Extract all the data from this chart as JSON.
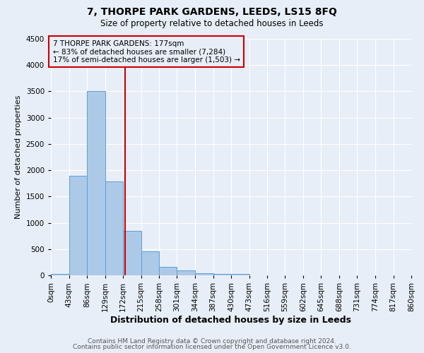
{
  "title": "7, THORPE PARK GARDENS, LEEDS, LS15 8FQ",
  "subtitle": "Size of property relative to detached houses in Leeds",
  "xlabel": "Distribution of detached houses by size in Leeds",
  "ylabel": "Number of detached properties",
  "footer_line1": "Contains HM Land Registry data © Crown copyright and database right 2024.",
  "footer_line2": "Contains public sector information licensed under the Open Government Licence v3.0.",
  "annotation_line1": "7 THORPE PARK GARDENS: 177sqm",
  "annotation_line2": "← 83% of detached houses are smaller (7,284)",
  "annotation_line3": "17% of semi-detached houses are larger (1,503) →",
  "bin_labels": [
    "0sqm",
    "43sqm",
    "86sqm",
    "129sqm",
    "172sqm",
    "215sqm",
    "258sqm",
    "301sqm",
    "344sqm",
    "387sqm",
    "430sqm",
    "473sqm",
    "516sqm",
    "559sqm",
    "602sqm",
    "645sqm",
    "688sqm",
    "731sqm",
    "774sqm",
    "817sqm",
    "860sqm"
  ],
  "bar_heights": [
    30,
    1900,
    3500,
    1780,
    840,
    455,
    160,
    90,
    45,
    25,
    25,
    0,
    0,
    0,
    0,
    0,
    0,
    0,
    0,
    0
  ],
  "bar_color": "#adc9e8",
  "bar_edge_color": "#5a9fd4",
  "vline_x": 177,
  "vline_color": "#cc0000",
  "annotation_box_color": "#cc0000",
  "background_color": "#e8eef8",
  "grid_color": "#ffffff",
  "ylim": [
    0,
    4500
  ],
  "xlim_start": 0,
  "xlim_end": 860,
  "bin_width": 43,
  "property_size": 177,
  "title_fontsize": 10,
  "subtitle_fontsize": 8.5,
  "xlabel_fontsize": 9,
  "ylabel_fontsize": 8,
  "tick_fontsize": 7.5,
  "annotation_fontsize": 7.5,
  "footer_fontsize": 6.5,
  "footer_color": "#555555"
}
